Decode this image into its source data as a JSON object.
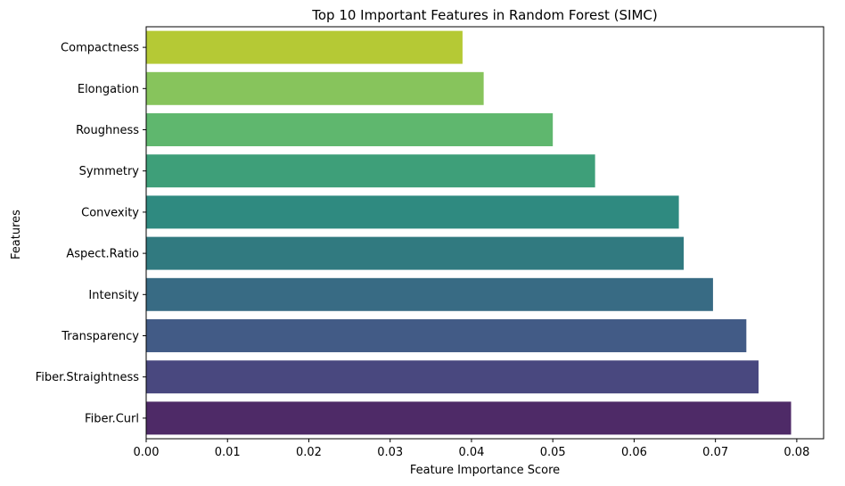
{
  "chart_data": {
    "type": "bar",
    "orientation": "horizontal",
    "title": "Top 10 Important Features in Random Forest (SIMC)",
    "xlabel": "Feature Importance Score",
    "ylabel": "Features",
    "xlim": [
      0,
      0.0833
    ],
    "xticks": [
      0.0,
      0.01,
      0.02,
      0.03,
      0.04,
      0.05,
      0.06,
      0.07,
      0.08
    ],
    "xtick_labels": [
      "0.00",
      "0.01",
      "0.02",
      "0.03",
      "0.04",
      "0.05",
      "0.06",
      "0.07",
      "0.08"
    ],
    "categories": [
      "Compactness",
      "Elongation",
      "Roughness",
      "Symmetry",
      "Convexity",
      "Aspect.Ratio",
      "Intensity",
      "Transparency",
      "Fiber.Straightness",
      "Fiber.Curl"
    ],
    "values": [
      0.0389,
      0.0415,
      0.05,
      0.0552,
      0.0655,
      0.0661,
      0.0697,
      0.0738,
      0.0753,
      0.0793
    ],
    "colors": [
      "#b5c935",
      "#87c45c",
      "#5fb76e",
      "#3e9f79",
      "#2f8a80",
      "#317a80",
      "#386b84",
      "#425b86",
      "#49487f",
      "#4e2a67"
    ],
    "grid": false,
    "legend": "none"
  }
}
